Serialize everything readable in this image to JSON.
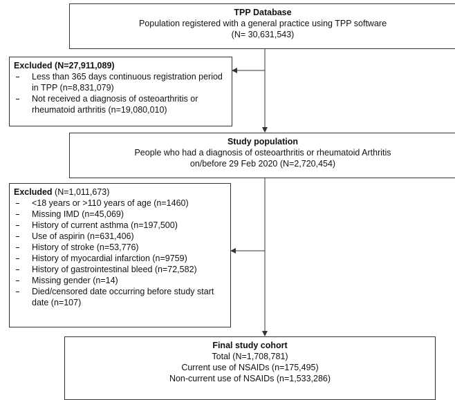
{
  "nodes": [
    {
      "title": "TPP Database",
      "lines": [
        "Population registered with a general practice using TPP software",
        "(N= 30,631,543)"
      ]
    },
    {
      "title": "Excluded (N=27,911,089)",
      "items": [
        "Less than 365 days continuous registration period in TPP (n=8,831,079)",
        "Not received a diagnosis of osteoarthritis or rheumatoid arthritis (n=19,080,010)"
      ]
    },
    {
      "title": "Study population",
      "lines": [
        "People who had a diagnosis of osteoarthritis or rheumatoid Arthritis",
        "on/before 29 Feb 2020 (N=2,720,454)"
      ]
    },
    {
      "title": "Excluded",
      "count": " (N=1,011,673)",
      "items": [
        "<18 years or >110 years of age (n=1460)",
        "Missing IMD (n=45,069)",
        "History of current asthma (n=197,500)",
        "Use of aspirin (n=631,406)",
        "History of stroke (n=53,776)",
        "History of myocardial infarction (n=9759)",
        "History of gastrointestinal bleed (n=72,582)",
        "Missing gender (n=14)",
        "Died/censored date occurring before study start date (n=107)"
      ]
    },
    {
      "title": "Final study cohort",
      "lines": [
        "Total (N=1,708,781)",
        "Current use of NSAIDs (n=175,495)",
        "Non-current use of NSAIDs (n=1,533,286)"
      ]
    }
  ]
}
